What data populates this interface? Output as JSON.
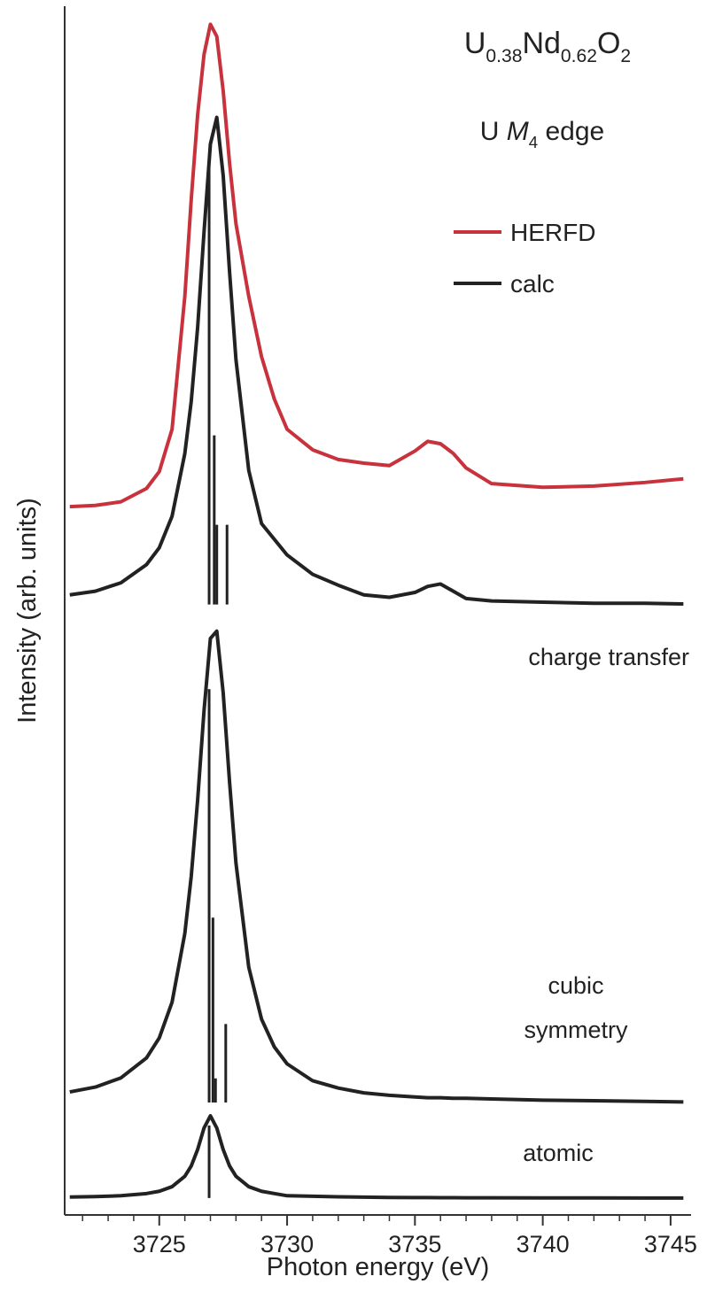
{
  "chart_data": {
    "type": "line",
    "title": "U0.38Nd0.62O2",
    "subtitle": "U M4 edge",
    "x_label": "Photon energy (eV)",
    "y_label": "Intensity (arb. units)",
    "annotations": [
      "charge transfer",
      "cubic symmetry",
      "atomic"
    ],
    "xlim": [
      3721.3,
      3745.8
    ],
    "ylim": [
      0,
      100
    ],
    "xticks": [
      3725,
      3730,
      3735,
      3740,
      3745
    ],
    "xminorticks": [
      3722,
      3723,
      3724,
      3726,
      3727,
      3728,
      3729,
      3731,
      3732,
      3733,
      3734,
      3736,
      3737,
      3738,
      3739,
      3741,
      3742,
      3743,
      3744
    ],
    "x": [
      3721.5,
      3722.5,
      3723.5,
      3724.5,
      3725,
      3725.5,
      3726,
      3726.25,
      3726.5,
      3726.75,
      3727,
      3727.25,
      3727.5,
      3727.75,
      3728,
      3728.5,
      3729,
      3729.5,
      3730,
      3731,
      3732,
      3733,
      3734,
      3735,
      3735.5,
      3736,
      3736.5,
      3737,
      3738,
      3740,
      3742,
      3744,
      3745.5
    ],
    "series": [
      {
        "name": "HERFD",
        "color": "#c8323c",
        "values": [
          58.6,
          58.7,
          59.0,
          60.1,
          61.5,
          65,
          76,
          84,
          91,
          96,
          98.5,
          97.5,
          93,
          87,
          82,
          76,
          71,
          67.5,
          65,
          63.3,
          62.5,
          62.2,
          62.0,
          63.2,
          64,
          63.8,
          63,
          61.8,
          60.5,
          60.2,
          60.3,
          60.6,
          60.9
        ]
      },
      {
        "name": "calc",
        "color": "#222222",
        "values": [
          51.3,
          51.6,
          52.3,
          53.8,
          55.2,
          57.8,
          63.0,
          67.3,
          73.4,
          81.3,
          88.6,
          90.8,
          86.0,
          78.0,
          70.75,
          61.6,
          57.2,
          55.9,
          54.6,
          53.0,
          52.1,
          51.3,
          51.1,
          51.5,
          52.0,
          52.2,
          51.6,
          51.0,
          50.8,
          50.7,
          50.6,
          50.6,
          50.55
        ]
      },
      {
        "color": "#222222",
        "values": [
          10.18,
          10.58,
          11.34,
          12.99,
          14.65,
          17.6,
          23.3,
          28.0,
          34.3,
          41.7,
          47.7,
          48.3,
          43.2,
          35.8,
          29.1,
          20.5,
          16.2,
          13.9,
          12.5,
          11.1,
          10.5,
          10.1,
          9.9,
          9.76,
          9.7,
          9.7,
          9.65,
          9.65,
          9.6,
          9.5,
          9.45,
          9.4,
          9.35
        ]
      },
      {
        "color": "#222222",
        "values": [
          1.48,
          1.52,
          1.59,
          1.77,
          1.96,
          2.34,
          3.2,
          4.05,
          5.41,
          7.19,
          8.2,
          7.19,
          5.41,
          4.05,
          3.2,
          2.34,
          1.96,
          1.77,
          1.59,
          1.55,
          1.5,
          1.47,
          1.45,
          1.44,
          1.44,
          1.43,
          1.43,
          1.42,
          1.42,
          1.41,
          1.41,
          1.4,
          1.4
        ]
      }
    ],
    "sticks": [
      {
        "color": "#222222",
        "base": 50.5,
        "x": [
          3726.95,
          3727.15,
          3727.25,
          3727.65
        ],
        "values": [
          86.7,
          64.5,
          57.1,
          57.1
        ]
      },
      {
        "color": "#222222",
        "base": 9.3,
        "x": [
          3726.95,
          3727.1,
          3727.2,
          3727.6
        ],
        "values": [
          43.5,
          24.6,
          11.3,
          15.8
        ]
      },
      {
        "color": "#222222",
        "base": 1.4,
        "x": [
          3726.95
        ],
        "values": [
          7.4
        ]
      }
    ]
  }
}
